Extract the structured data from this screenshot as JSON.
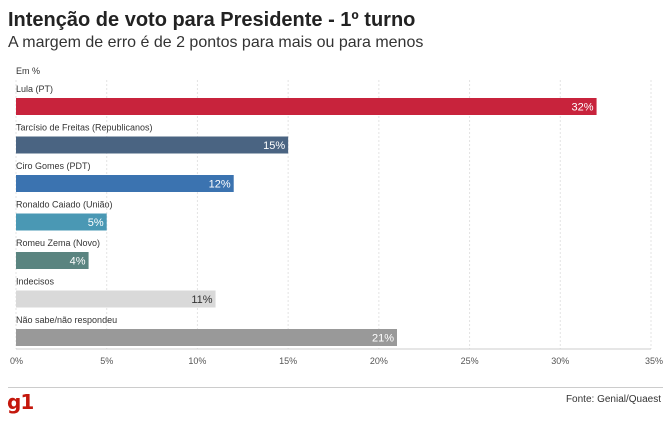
{
  "header": {
    "title": "Intenção de voto para Presidente - 1º turno",
    "subtitle": "A margem de erro é de 2 pontos para mais ou para menos",
    "unit_note": "Em %"
  },
  "footer": {
    "logo": "g1",
    "source": "Fonte: Genial/Quaest"
  },
  "chart_data": {
    "type": "bar",
    "orientation": "horizontal",
    "title": "Intenção de voto para Presidente - 1º turno",
    "subtitle": "A margem de erro é de 2 pontos para mais ou para menos",
    "categories": [
      "Lula (PT)",
      "Tarcísio de Freitas (Republicanos)",
      "Ciro Gomes (PDT)",
      "Ronaldo Caiado (União)",
      "Romeu Zema (Novo)",
      "Indecisos",
      "Não sabe/não respondeu"
    ],
    "values": [
      32,
      15,
      12,
      5,
      4,
      11,
      21
    ],
    "value_labels": [
      "32%",
      "15%",
      "12%",
      "5%",
      "4%",
      "11%",
      "21%"
    ],
    "colors": [
      "#c8233c",
      "#4a6482",
      "#3b73b0",
      "#4a98b4",
      "#5a8480",
      "#d9d9d9",
      "#999999"
    ],
    "label_colors": [
      "#ffffff",
      "#ffffff",
      "#ffffff",
      "#ffffff",
      "#ffffff",
      "#333333",
      "#ffffff"
    ],
    "xlim": [
      0,
      35
    ],
    "xticks": [
      0,
      5,
      10,
      15,
      20,
      25,
      30,
      35
    ],
    "xtick_labels": [
      "0%",
      "5%",
      "10%",
      "15%",
      "20%",
      "25%",
      "30%",
      "35%"
    ],
    "grid": true
  }
}
